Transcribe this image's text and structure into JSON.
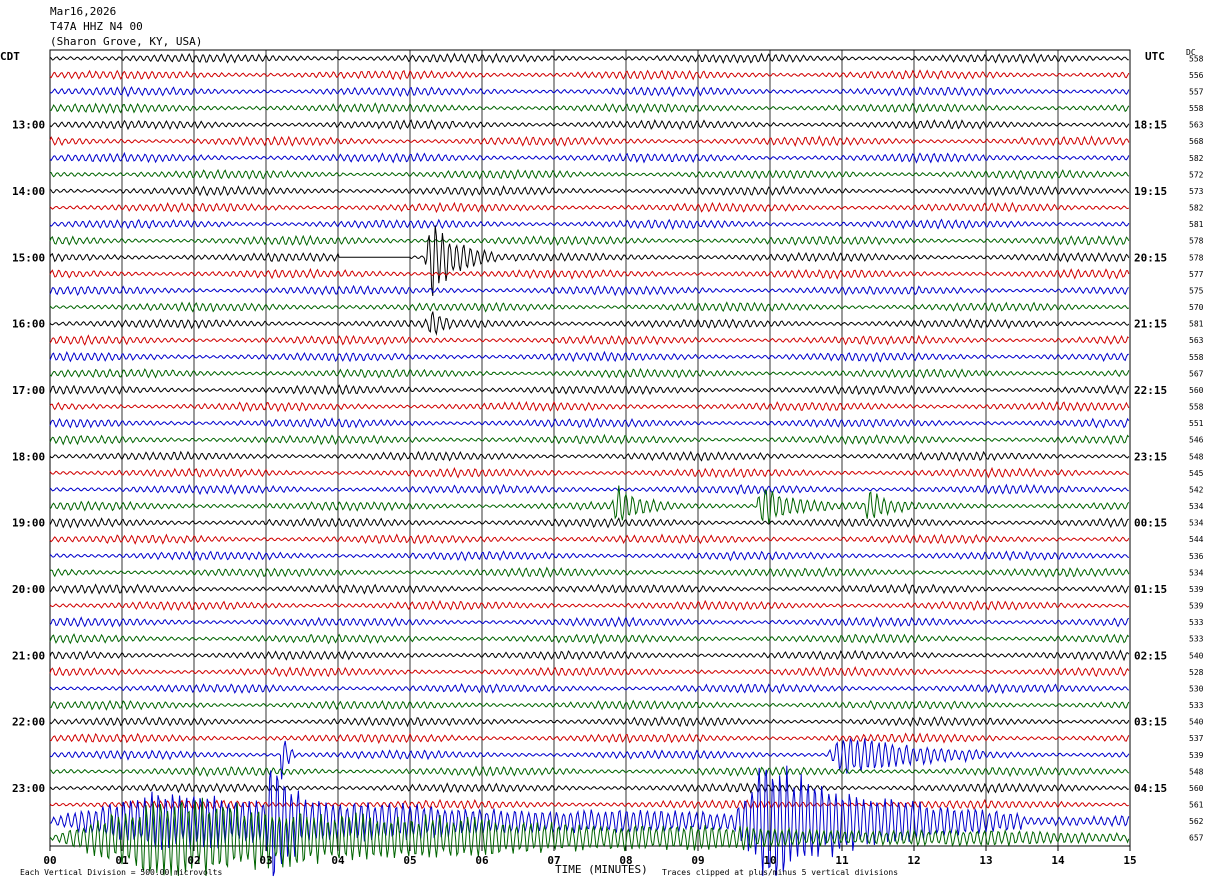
{
  "header": {
    "date": "Mar16,2026",
    "station": "T47A HHZ N4 00",
    "location": "(Sharon Grove, KY, USA)"
  },
  "left_axis_label": "CDT",
  "right_axis_label": "UTC",
  "dc_label": "DC",
  "footer": {
    "scale": "Each Vertical Division =  500.00 microvolts",
    "clip_note": "Traces clipped at plus/minus 5 vertical divisions"
  },
  "colors": {
    "trace": [
      "#000000",
      "#d00000",
      "#0000cc",
      "#006400"
    ],
    "grid": "#000000"
  },
  "chart_data": {
    "type": "line",
    "xlabel": "TIME (MINUTES)",
    "x_ticks": [
      "00",
      "01",
      "02",
      "03",
      "04",
      "05",
      "06",
      "07",
      "08",
      "09",
      "10",
      "11",
      "12",
      "13",
      "14",
      "15"
    ],
    "xlim": [
      0,
      15
    ],
    "left_time_labels": [
      {
        "row": 4,
        "label": "13:00"
      },
      {
        "row": 8,
        "label": "14:00"
      },
      {
        "row": 12,
        "label": "15:00"
      },
      {
        "row": 16,
        "label": "16:00"
      },
      {
        "row": 20,
        "label": "17:00"
      },
      {
        "row": 24,
        "label": "18:00"
      },
      {
        "row": 28,
        "label": "19:00"
      },
      {
        "row": 32,
        "label": "20:00"
      },
      {
        "row": 36,
        "label": "21:00"
      },
      {
        "row": 40,
        "label": "22:00"
      },
      {
        "row": 44,
        "label": "23:00"
      }
    ],
    "right_time_labels": [
      {
        "row": 4,
        "label": "18:15"
      },
      {
        "row": 8,
        "label": "19:15"
      },
      {
        "row": 12,
        "label": "20:15"
      },
      {
        "row": 16,
        "label": "21:15"
      },
      {
        "row": 20,
        "label": "22:15"
      },
      {
        "row": 24,
        "label": "23:15"
      },
      {
        "row": 28,
        "label": "00:15"
      },
      {
        "row": 32,
        "label": "01:15"
      },
      {
        "row": 36,
        "label": "02:15"
      },
      {
        "row": 40,
        "label": "03:15"
      },
      {
        "row": 44,
        "label": "04:15"
      }
    ],
    "dc_values": [
      "558",
      "556",
      "557",
      "558",
      "563",
      "568",
      "582",
      "572",
      "573",
      "582",
      "581",
      "578",
      "578",
      "577",
      "575",
      "570",
      "581",
      "563",
      "558",
      "567",
      "560",
      "558",
      "551",
      "546",
      "548",
      "545",
      "542",
      "534",
      "534",
      "544",
      "536",
      "534",
      "539",
      "539",
      "533",
      "533",
      "540",
      "528",
      "530",
      "533",
      "540",
      "537",
      "539",
      "548",
      "560",
      "561",
      "562",
      "657"
    ],
    "events": [
      {
        "row": 12,
        "start_min": 5.2,
        "end_min": 6.2,
        "amplitude": 2.8
      },
      {
        "row": 16,
        "start_min": 5.25,
        "end_min": 5.6,
        "amplitude": 1.0
      },
      {
        "row": 27,
        "start_min": 7.8,
        "end_min": 8.7,
        "amplitude": 1.0
      },
      {
        "row": 27,
        "start_min": 9.8,
        "end_min": 10.9,
        "amplitude": 1.5
      },
      {
        "row": 27,
        "start_min": 11.3,
        "end_min": 11.9,
        "amplitude": 1.0
      },
      {
        "row": 42,
        "start_min": 3.2,
        "end_min": 3.4,
        "amplitude": 2.0
      },
      {
        "row": 42,
        "start_min": 10.8,
        "end_min": 13.0,
        "amplitude": 1.4
      },
      {
        "row": 46,
        "start_min": 0.0,
        "end_min": 15.0,
        "amplitude": 1.8
      },
      {
        "row": 46,
        "start_min": 3.0,
        "end_min": 3.6,
        "amplitude": 4.5
      },
      {
        "row": 46,
        "start_min": 9.5,
        "end_min": 13.5,
        "amplitude": 4.0
      },
      {
        "row": 47,
        "start_min": 0.0,
        "end_min": 15.0,
        "amplitude": 2.5
      }
    ],
    "gaps": [
      {
        "row": 12,
        "start_min": 4.0,
        "end_min": 5.0
      }
    ]
  }
}
